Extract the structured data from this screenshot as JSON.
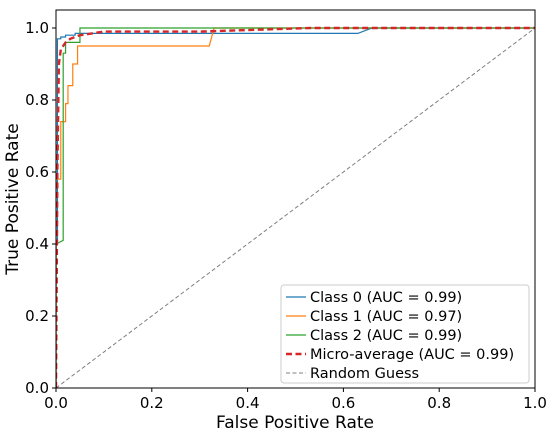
{
  "chart_data": {
    "type": "line",
    "title": "",
    "xlabel": "False Positive Rate",
    "ylabel": "True Positive Rate",
    "xlim": [
      0.0,
      1.0
    ],
    "ylim": [
      0.0,
      1.05
    ],
    "xticks": [
      "0.0",
      "0.2",
      "0.4",
      "0.6",
      "0.8",
      "1.0"
    ],
    "yticks": [
      "0.0",
      "0.2",
      "0.4",
      "0.6",
      "0.8",
      "1.0"
    ],
    "grid": false,
    "legend_position": "bottom-right",
    "series": [
      {
        "name": "Class 0 (AUC = 0.99)",
        "color": "#1f77b4",
        "style": "solid",
        "x": [
          0.0,
          0.0,
          0.003,
          0.003,
          0.01,
          0.01,
          0.02,
          0.02,
          0.04,
          0.04,
          0.63,
          0.66,
          0.66,
          1.0
        ],
        "y": [
          0.0,
          0.4,
          0.4,
          0.97,
          0.97,
          0.975,
          0.975,
          0.98,
          0.98,
          0.985,
          0.985,
          1.0,
          1.0,
          1.0
        ]
      },
      {
        "name": "Class 1 (AUC = 0.97)",
        "color": "#ff7f0e",
        "style": "solid",
        "x": [
          0.0,
          0.0,
          0.01,
          0.01,
          0.02,
          0.02,
          0.025,
          0.025,
          0.035,
          0.035,
          0.045,
          0.045,
          0.32,
          0.33,
          0.33,
          1.0
        ],
        "y": [
          0.0,
          0.58,
          0.58,
          0.74,
          0.74,
          0.79,
          0.79,
          0.84,
          0.84,
          0.9,
          0.9,
          0.95,
          0.95,
          1.0,
          1.0,
          1.0
        ]
      },
      {
        "name": "Class 2 (AUC = 0.99)",
        "color": "#2ca02c",
        "style": "solid",
        "x": [
          0.0,
          0.0,
          0.015,
          0.015,
          0.02,
          0.02,
          0.05,
          0.05,
          1.0
        ],
        "y": [
          0.0,
          0.4,
          0.41,
          0.93,
          0.93,
          0.96,
          0.96,
          1.0,
          1.0
        ]
      },
      {
        "name": "Micro-average (AUC = 0.99)",
        "color": "#d62728",
        "style": "dashed",
        "x": [
          0.0,
          0.003,
          0.006,
          0.01,
          0.02,
          0.03,
          0.05,
          0.1,
          0.3,
          0.53,
          0.65,
          1.0
        ],
        "y": [
          0.0,
          0.62,
          0.9,
          0.94,
          0.96,
          0.97,
          0.98,
          0.99,
          0.99,
          1.0,
          1.0,
          1.0
        ]
      },
      {
        "name": "Random Guess",
        "color": "#7f7f7f",
        "style": "dashed-thin",
        "x": [
          0.0,
          1.0
        ],
        "y": [
          0.0,
          1.0
        ]
      }
    ]
  }
}
